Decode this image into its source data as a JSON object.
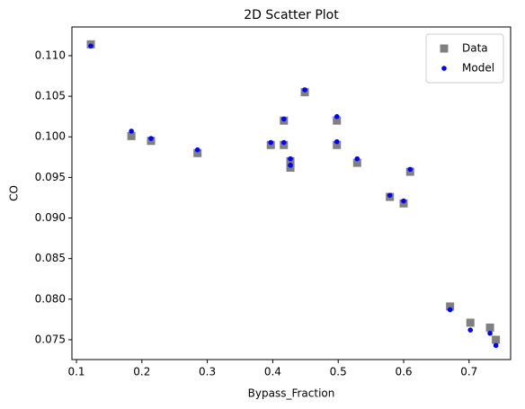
{
  "chart_data": {
    "type": "scatter",
    "title": "2D Scatter Plot",
    "x_label": "Bypass_Fraction",
    "y_label": "CO",
    "x": [
      0.122,
      0.184,
      0.214,
      0.285,
      0.397,
      0.417,
      0.417,
      0.427,
      0.427,
      0.449,
      0.498,
      0.498,
      0.529,
      0.579,
      0.6,
      0.61,
      0.671,
      0.702,
      0.732,
      0.741
    ],
    "series": [
      {
        "name": "Data",
        "color": "#808080",
        "marker": "square",
        "values": [
          0.1114,
          0.1001,
          0.0995,
          0.098,
          0.099,
          0.102,
          0.099,
          0.097,
          0.0962,
          0.1055,
          0.102,
          0.099,
          0.0968,
          0.0926,
          0.0918,
          0.0957,
          0.0791,
          0.0771,
          0.0765,
          0.075
        ]
      },
      {
        "name": "Model",
        "color": "#0000ff",
        "marker": "circle",
        "values": [
          0.1112,
          0.1007,
          0.0998,
          0.0984,
          0.0993,
          0.1022,
          0.0993,
          0.0973,
          0.0965,
          0.1058,
          0.1025,
          0.0994,
          0.0973,
          0.0928,
          0.0921,
          0.096,
          0.0787,
          0.0762,
          0.0758,
          0.0743
        ]
      }
    ],
    "xlim": [
      0.0931,
      0.7635
    ],
    "ylim": [
      0.07256,
      0.11354
    ],
    "xticks": [
      0.1,
      0.2,
      0.3,
      0.4,
      0.5,
      0.6,
      0.7
    ],
    "yticks": [
      0.075,
      {
        "value": 0.08,
        "label": "0.080"
      },
      0.085,
      {
        "value": 0.09,
        "label": "0.090"
      },
      0.095,
      {
        "value": 0.1,
        "label": "0.100"
      },
      0.105,
      {
        "value": 0.11,
        "label": "0.110"
      }
    ],
    "grid": false,
    "legend": "upper right"
  }
}
